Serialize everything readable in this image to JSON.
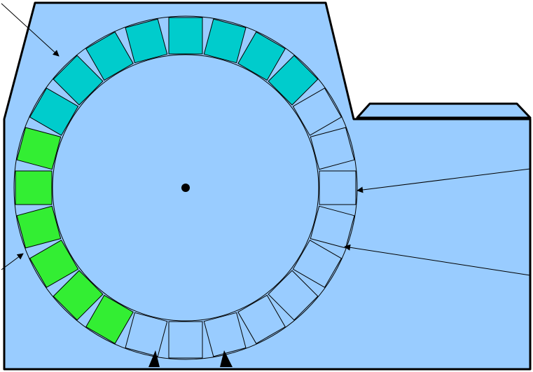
{
  "colors": {
    "housing_fill": "#99ccff",
    "housing_stroke": "#000000",
    "teal_slot": "#00cccc",
    "green_slot": "#33ee33",
    "empty_slot": "#99ccff",
    "line": "#000000"
  },
  "wheel": {
    "slot_count": 24,
    "slots": [
      {
        "index": 0,
        "state": "empty"
      },
      {
        "index": 1,
        "state": "empty"
      },
      {
        "index": 2,
        "state": "empty"
      },
      {
        "index": 3,
        "state": "empty"
      },
      {
        "index": 4,
        "state": "empty"
      },
      {
        "index": 5,
        "state": "empty"
      },
      {
        "index": 6,
        "state": "empty"
      },
      {
        "index": 7,
        "state": "empty"
      },
      {
        "index": 8,
        "state": "green"
      },
      {
        "index": 9,
        "state": "green"
      },
      {
        "index": 10,
        "state": "green"
      },
      {
        "index": 11,
        "state": "green"
      },
      {
        "index": 12,
        "state": "green"
      },
      {
        "index": 13,
        "state": "green"
      },
      {
        "index": 14,
        "state": "teal"
      },
      {
        "index": 15,
        "state": "teal"
      },
      {
        "index": 16,
        "state": "teal"
      },
      {
        "index": 17,
        "state": "teal"
      },
      {
        "index": 18,
        "state": "teal"
      },
      {
        "index": 19,
        "state": "teal"
      },
      {
        "index": 20,
        "state": "teal"
      },
      {
        "index": 21,
        "state": "teal"
      },
      {
        "index": 22,
        "state": "empty"
      },
      {
        "index": 23,
        "state": "empty"
      }
    ]
  },
  "icons": {
    "hub": "center-dot-icon",
    "arrow": "arrowhead-icon"
  }
}
